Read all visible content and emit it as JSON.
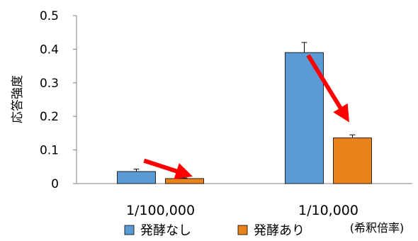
{
  "chart_data": {
    "type": "bar",
    "ylabel": "応答強度",
    "ylim": [
      0,
      0.5
    ],
    "yticks": [
      "0",
      "0.1",
      "0.2",
      "0.3",
      "0.4",
      "0.5"
    ],
    "categories": [
      "1/100,000",
      "1/10,000"
    ],
    "dilution_note": "(希釈倍率)",
    "series": [
      {
        "name": "発酵なし",
        "color": "#5B9BD5",
        "values": [
          0.036,
          0.39
        ],
        "errors": [
          0.007,
          0.03
        ]
      },
      {
        "name": "発酵あり",
        "color": "#E8821A",
        "values": [
          0.015,
          0.136
        ],
        "errors": [
          0.0015,
          0.009
        ]
      }
    ],
    "grid": false,
    "legend_position": "bottom",
    "annotations": [
      {
        "type": "arrow",
        "color": "#FF0000",
        "meaning": "decrease",
        "category": "1/100,000"
      },
      {
        "type": "arrow",
        "color": "#FF0000",
        "meaning": "decrease",
        "category": "1/10,000"
      }
    ]
  }
}
